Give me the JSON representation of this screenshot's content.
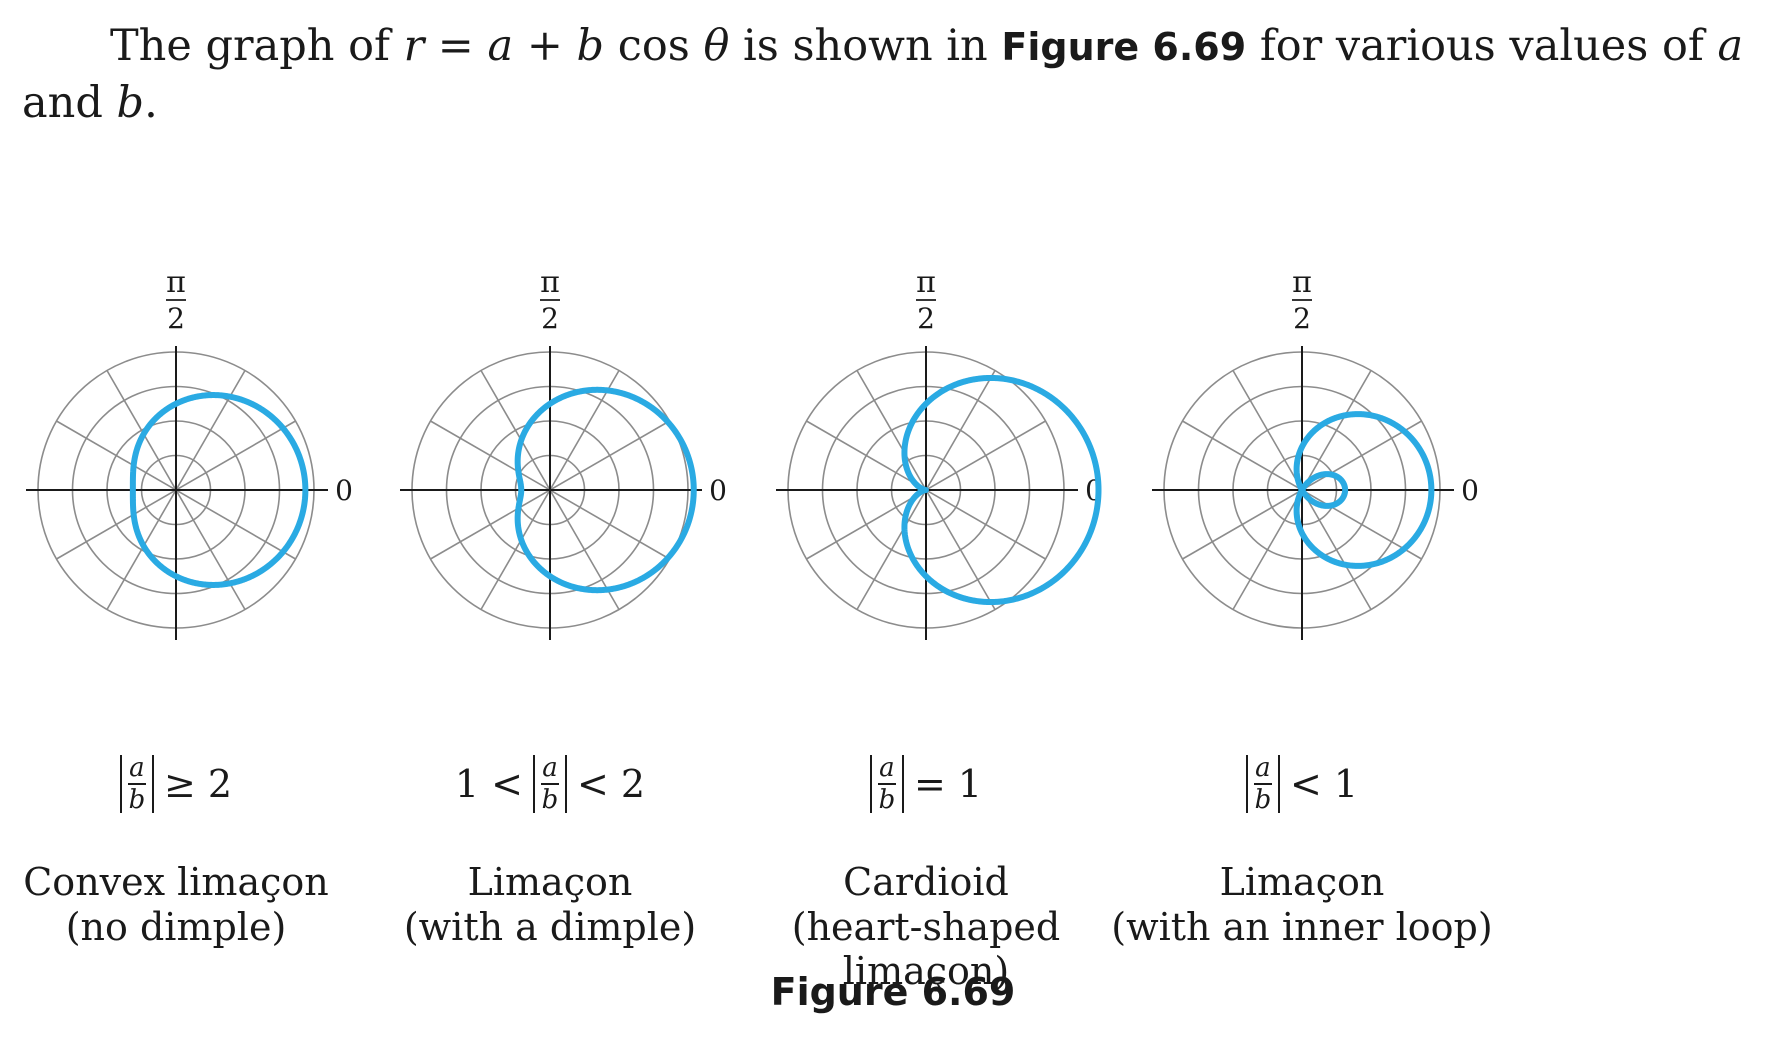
{
  "intro": {
    "part1": "The graph of ",
    "r": "r",
    "eq": " = ",
    "a": "a",
    "plus": " + ",
    "b": "b",
    "cos": " cos ",
    "theta": "θ",
    "part2": " is shown in ",
    "figure_ref": "Figure 6.69",
    "part3": " for various values of ",
    "a2": "a",
    "part4": " and ",
    "b2": "b",
    "end": "."
  },
  "polar_axes": {
    "top_label_num": "π",
    "top_label_den": "2",
    "right_label": "0"
  },
  "panels": [
    {
      "condition_prefix": "",
      "condition_suffix": "≥ 2",
      "caption_line1": "Convex limaçon",
      "caption_line2": "(no dimple)",
      "ratio": 2.0
    },
    {
      "condition_prefix": "1 <",
      "condition_suffix": "< 2",
      "caption_line1": "Limaçon",
      "caption_line2": "(with a dimple)",
      "ratio": 1.5
    },
    {
      "condition_prefix": "",
      "condition_suffix": "= 1",
      "caption_line1": "Cardioid",
      "caption_line2": "(heart-shaped limaçon)",
      "ratio": 1.0
    },
    {
      "condition_prefix": "",
      "condition_suffix": "< 1",
      "caption_line1": "Limaçon",
      "caption_line2": "(with an inner loop)",
      "ratio": 0.5
    }
  ],
  "fraction": {
    "num": "a",
    "den": "b"
  },
  "figure_label": "Figure 6.69",
  "colors": {
    "curve": "#2aaae3",
    "grid": "#8c8c8c",
    "axis": "#1a1a1a"
  }
}
